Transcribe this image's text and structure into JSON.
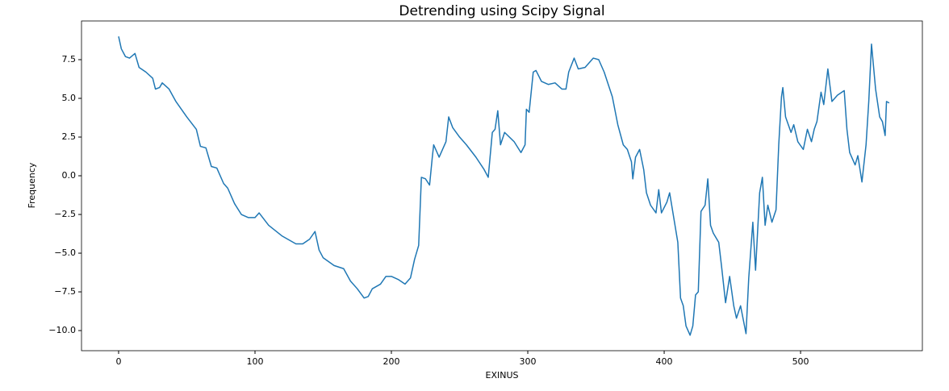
{
  "chart_data": {
    "type": "line",
    "title": "Detrending using Scipy Signal",
    "x_label": "EXINUS",
    "y_label": "Frequency",
    "color": "#1f77b4",
    "xlim": [
      -27.2,
      589.3
    ],
    "ylim": [
      -11.3,
      10.0
    ],
    "xticks": [
      0,
      100,
      200,
      300,
      400,
      500
    ],
    "yticks": [
      {
        "value": -10,
        "label": "−10.0"
      },
      {
        "value": -7.5,
        "label": "−7.5"
      },
      {
        "value": -5,
        "label": "−5.0"
      },
      {
        "value": -2.5,
        "label": "−2.5"
      },
      {
        "value": 0,
        "label": "0.0"
      },
      {
        "value": 2.5,
        "label": "2.5"
      },
      {
        "value": 5,
        "label": "5.0"
      },
      {
        "value": 7.5,
        "label": "7.5"
      }
    ],
    "x": [
      0,
      2,
      5,
      8,
      12,
      15,
      20,
      25,
      27,
      30,
      32,
      37,
      42,
      50,
      57,
      60,
      64,
      68,
      72,
      77,
      80,
      85,
      90,
      95,
      100,
      103,
      110,
      120,
      130,
      135,
      140,
      144,
      147,
      150,
      158,
      165,
      170,
      175,
      180,
      183,
      186,
      192,
      196,
      200,
      205,
      210,
      214,
      217,
      220,
      222,
      225,
      228,
      230,
      231,
      235,
      240,
      242,
      245,
      250,
      255,
      262,
      268,
      271,
      274,
      276,
      278,
      280,
      283,
      290,
      295,
      298,
      299,
      301,
      304,
      306,
      310,
      315,
      320,
      325,
      328,
      330,
      334,
      337,
      342,
      345,
      348,
      352,
      356,
      362,
      366,
      370,
      373,
      376,
      377,
      379,
      382,
      385,
      387,
      390,
      394,
      396,
      398,
      402,
      404,
      407,
      410,
      412,
      414,
      416,
      419,
      421,
      423,
      425,
      427,
      430,
      432,
      434,
      436,
      440,
      442,
      445,
      448,
      451,
      453,
      456,
      460,
      462,
      465,
      467,
      470,
      472,
      474,
      476,
      479,
      482,
      484,
      486,
      487,
      489,
      493,
      495,
      498,
      502,
      505,
      508,
      510,
      512,
      515,
      517,
      520,
      523,
      527,
      532,
      534,
      536,
      540,
      542,
      545,
      548,
      550,
      552,
      555,
      558,
      560,
      562,
      563,
      565
    ],
    "values": [
      9.0,
      8.2,
      7.7,
      7.6,
      7.9,
      7.0,
      6.7,
      6.3,
      5.6,
      5.7,
      6.0,
      5.6,
      4.8,
      3.8,
      3.0,
      1.9,
      1.8,
      0.6,
      0.5,
      -0.5,
      -0.8,
      -1.8,
      -2.5,
      -2.7,
      -2.7,
      -2.4,
      -3.2,
      -3.9,
      -4.4,
      -4.4,
      -4.1,
      -3.6,
      -4.8,
      -5.3,
      -5.8,
      -6.0,
      -6.8,
      -7.3,
      -7.9,
      -7.8,
      -7.3,
      -7.0,
      -6.5,
      -6.5,
      -6.7,
      -7.0,
      -6.6,
      -5.4,
      -4.5,
      -0.1,
      -0.2,
      -0.6,
      1.2,
      2.0,
      1.2,
      2.2,
      3.8,
      3.1,
      2.5,
      2.0,
      1.2,
      0.4,
      -0.1,
      2.8,
      3.0,
      4.2,
      2.0,
      2.8,
      2.2,
      1.5,
      2.0,
      4.3,
      4.1,
      6.7,
      6.8,
      6.1,
      5.9,
      6.0,
      5.6,
      5.6,
      6.7,
      7.6,
      6.9,
      7.0,
      7.3,
      7.6,
      7.5,
      6.7,
      5.1,
      3.3,
      2.0,
      1.7,
      0.9,
      -0.2,
      1.2,
      1.7,
      0.4,
      -1.1,
      -1.9,
      -2.4,
      -0.9,
      -2.4,
      -1.7,
      -1.1,
      -2.7,
      -4.3,
      -7.9,
      -8.4,
      -9.7,
      -10.3,
      -9.7,
      -7.7,
      -7.5,
      -2.3,
      -1.9,
      -0.2,
      -3.2,
      -3.7,
      -4.3,
      -5.8,
      -8.2,
      -6.5,
      -8.4,
      -9.2,
      -8.4,
      -10.2,
      -6.6,
      -3.0,
      -6.1,
      -1.1,
      -0.1,
      -3.2,
      -1.9,
      -3.0,
      -2.2,
      2.0,
      5.1,
      5.7,
      3.8,
      2.8,
      3.3,
      2.2,
      1.7,
      3.0,
      2.2,
      3.0,
      3.5,
      5.4,
      4.6,
      6.9,
      4.8,
      5.2,
      5.5,
      3.0,
      1.5,
      0.7,
      1.3,
      -0.4,
      2.0,
      4.8,
      8.5,
      5.6,
      3.8,
      3.5,
      2.6,
      4.8,
      4.7
    ]
  }
}
